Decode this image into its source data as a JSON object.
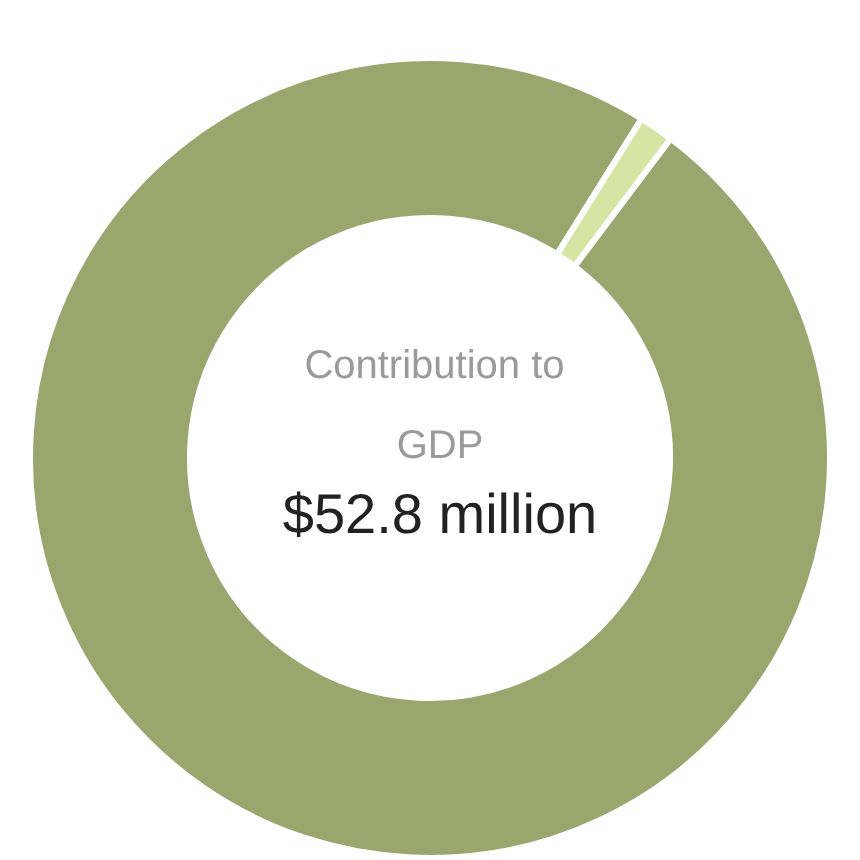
{
  "chart_data": {
    "type": "donut",
    "title": "Contribution to GDP",
    "annotations": [
      "$52.8 million"
    ],
    "categories": [
      null,
      null
    ],
    "values": [
      98.6,
      1.4
    ],
    "colors": [
      "#9aa66e",
      "#d6e4a4"
    ]
  }
}
